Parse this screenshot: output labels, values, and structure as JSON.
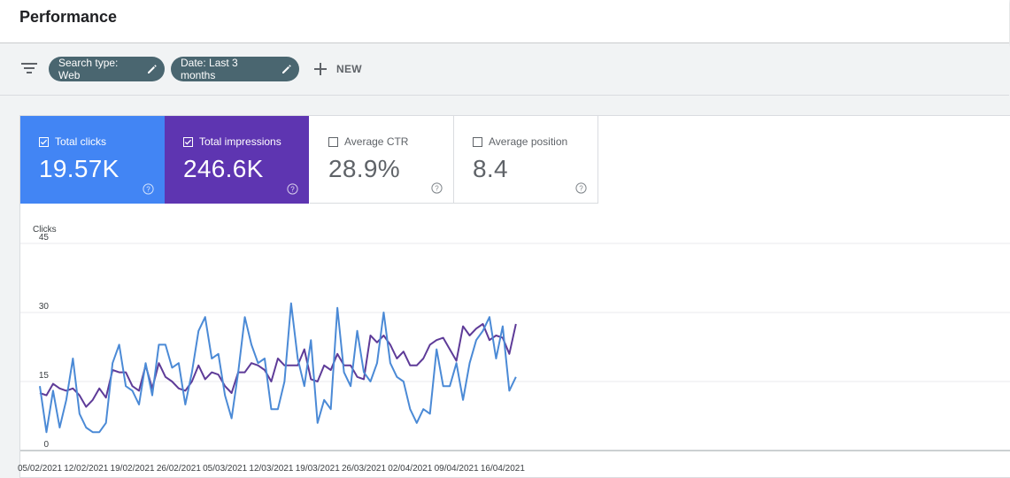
{
  "header": {
    "title": "Performance"
  },
  "filters": {
    "chips": [
      {
        "label": "Search type: Web"
      },
      {
        "label": "Date: Last 3 months"
      }
    ],
    "new_label": "NEW"
  },
  "metrics": [
    {
      "label": "Total clicks",
      "value": "19.57K",
      "checked": true
    },
    {
      "label": "Total impressions",
      "value": "246.6K",
      "checked": true
    },
    {
      "label": "Average CTR",
      "value": "28.9%",
      "checked": false
    },
    {
      "label": "Average position",
      "value": "8.4",
      "checked": false
    }
  ],
  "colors": {
    "clicks": "#4285f4",
    "impressions": "#5e35b1",
    "clicks_line": "#4b8ad6",
    "impressions_line": "#5e3b98"
  },
  "chart_data": {
    "type": "line",
    "ylabel": "Clicks",
    "ylim": [
      0,
      45
    ],
    "yticks": [
      0,
      15,
      30,
      45
    ],
    "grid": true,
    "x_ticks": [
      "05/02/2021",
      "12/02/2021",
      "19/02/2021",
      "26/02/2021",
      "05/03/2021",
      "12/03/2021",
      "19/03/2021",
      "26/03/2021",
      "02/04/2021",
      "09/04/2021",
      "16/04/2021"
    ],
    "x_start": "05/02/2021",
    "series": [
      {
        "metric": "clicks",
        "values": [
          14,
          4,
          13,
          5,
          11,
          20,
          8,
          5,
          4,
          4,
          6,
          19,
          23,
          14,
          13,
          10,
          19,
          12,
          23,
          23,
          18,
          19,
          10,
          17,
          26,
          29,
          20,
          21,
          12,
          7,
          17,
          29,
          23,
          19,
          20,
          9,
          9,
          15,
          32,
          20,
          14,
          24,
          6,
          11,
          9,
          31,
          17,
          14,
          26,
          17,
          15,
          19,
          30,
          19,
          16,
          15,
          9,
          6,
          9,
          8,
          22,
          14,
          14,
          19,
          11,
          19,
          24,
          26,
          29,
          20,
          27,
          13,
          16
        ]
      },
      {
        "metric": "impressions",
        "values": [
          12.5,
          12,
          14.5,
          13.5,
          13,
          13.5,
          12,
          9.5,
          11,
          13.5,
          11.5,
          17.5,
          17,
          17,
          14,
          13,
          18.5,
          13.5,
          19,
          16,
          15,
          13.5,
          13,
          15,
          18.5,
          15.5,
          17,
          16.5,
          14,
          12.5,
          17,
          17,
          19,
          18.5,
          17.5,
          15,
          20,
          18.5,
          18.5,
          18.5,
          22,
          15.5,
          15,
          18.5,
          17.5,
          21,
          18.5,
          18.5,
          16,
          15.5,
          25,
          23.5,
          25,
          23,
          20,
          21.5,
          18.5,
          18.5,
          20,
          23,
          24,
          24.5,
          22,
          19.5,
          27,
          25,
          26.5,
          27.5,
          24,
          25,
          24.5,
          21,
          27.5
        ]
      }
    ]
  }
}
